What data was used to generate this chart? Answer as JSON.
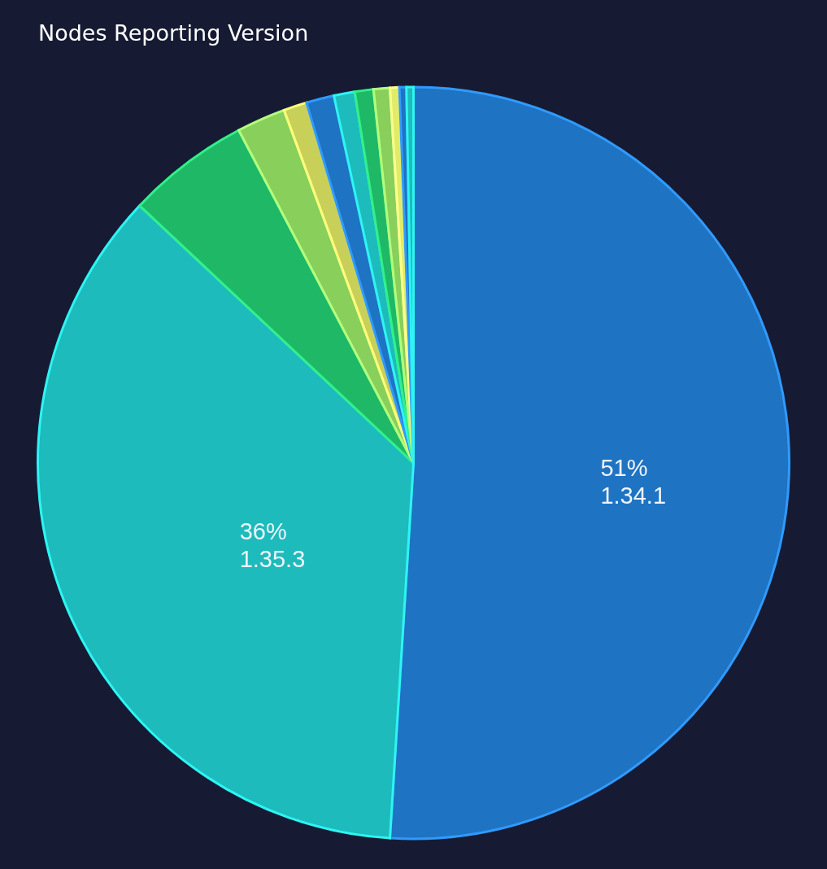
{
  "chart_data": {
    "type": "pie",
    "title": "Nodes Reporting Version",
    "categories": [
      "1.34.1",
      "1.35.3",
      null,
      null,
      null,
      null,
      null,
      null,
      null,
      null,
      null,
      null
    ],
    "values": [
      51,
      36,
      5.3,
      2.1,
      1.0,
      1.2,
      0.9,
      0.8,
      0.7,
      0.4,
      0.3,
      0.3
    ],
    "value_labels": [
      "51%",
      "36%",
      null,
      null,
      null,
      null,
      null,
      null,
      null,
      null,
      null,
      null
    ],
    "colors": [
      "#1e73c2",
      "#1dbbbb",
      "#1fb866",
      "#88cf5c",
      "#c9d05a",
      "#1e73c2",
      "#1dbbbb",
      "#1fb866",
      "#88cf5c",
      "#e0ec68",
      "#1e73c2",
      "#1dbbbb"
    ],
    "legend": false
  }
}
